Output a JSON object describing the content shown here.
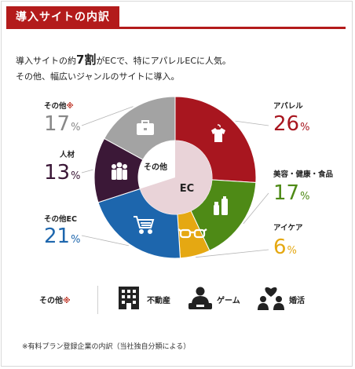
{
  "header": {
    "title": "導入サイトの内訳"
  },
  "lead": {
    "line1_pre": "導入サイトの約",
    "line1_big": "7割",
    "line1_post": "がECで、特にアパレルECに人気。",
    "line2": "その他、幅広いジャンルのサイトに導入。"
  },
  "center": {
    "inner_label": "その他",
    "ec_label": "EC"
  },
  "chart_data": {
    "type": "pie",
    "title": "",
    "slices": [
      {
        "label": "アパレル",
        "value": 26,
        "color": "#a8161f",
        "group": "EC",
        "icon": "shirt-icon"
      },
      {
        "label": "美容・健康・食品",
        "value": 17,
        "color": "#4e8a16",
        "group": "EC",
        "icon": "cosmetics-icon"
      },
      {
        "label": "アイケア",
        "value": 6,
        "color": "#e5a812",
        "group": "EC",
        "icon": "glasses-icon"
      },
      {
        "label": "その他EC",
        "value": 21,
        "color": "#1d66ad",
        "group": "EC",
        "icon": "cart-icon"
      },
      {
        "label": "人材",
        "value": 13,
        "color": "#3b1837",
        "group": "その他",
        "icon": "people-icon"
      },
      {
        "label": "その他",
        "value": 17,
        "color": "#a3a3a3",
        "group": "その他",
        "icon": "briefcase-icon",
        "note_mark": "※"
      }
    ],
    "unit": "%",
    "legend": "callouts"
  },
  "others": {
    "label": "その他",
    "mark": "※",
    "items": [
      {
        "label": "不動産",
        "icon": "building-icon"
      },
      {
        "label": "ゲーム",
        "icon": "gamer-icon"
      },
      {
        "label": "婚活",
        "icon": "couple-heart-icon"
      }
    ]
  },
  "footnote": "※有料プラン登録企業の内訳（当社独自分類による）"
}
